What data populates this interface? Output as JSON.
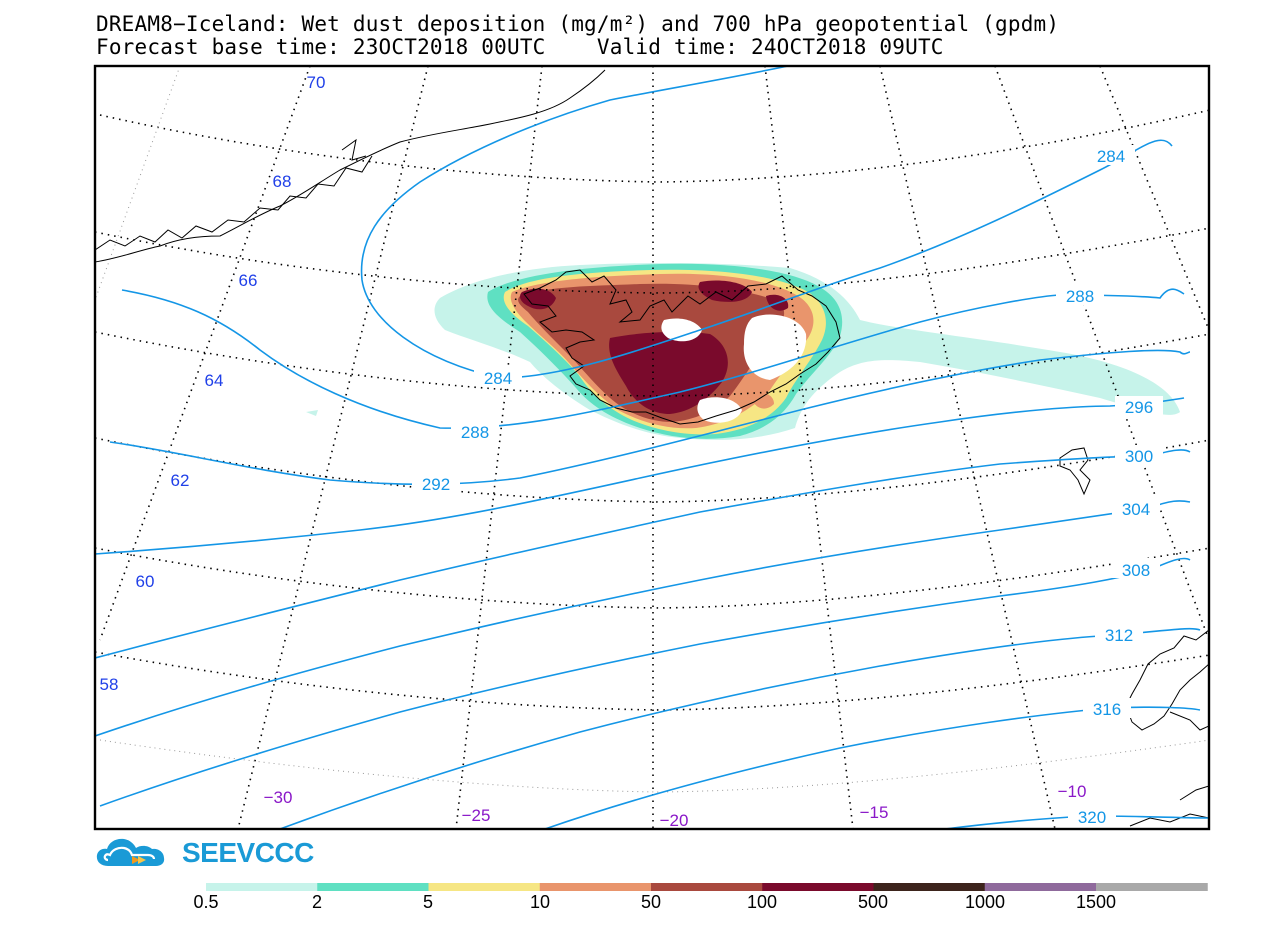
{
  "header": {
    "line1": "DREAM8−Iceland: Wet dust deposition (mg/m²) and 700 hPa geopotential (gpdm)",
    "line2": "Forecast base time: 23OCT2018 00UTC    Valid time: 24OCT2018 09UTC"
  },
  "logo": {
    "name": "SEEVCCC",
    "icon": "cloud-arrow-icon",
    "color": "#1a9ad6"
  },
  "latitude_labels": [
    "70",
    "68",
    "66",
    "64",
    "62",
    "60",
    "58"
  ],
  "longitude_labels": [
    "−30",
    "−25",
    "−20",
    "−15",
    "−10"
  ],
  "contour_labels": [
    "284",
    "284",
    "288",
    "288",
    "292",
    "296",
    "300",
    "304",
    "308",
    "312",
    "316",
    "320"
  ],
  "legend": {
    "ticks": [
      "0.5",
      "2",
      "5",
      "10",
      "50",
      "100",
      "500",
      "1000",
      "1500"
    ],
    "colors": [
      "#c6f3ea",
      "#5fe0c2",
      "#f6e684",
      "#e9956c",
      "#a9493e",
      "#7a0a2c",
      "#3d241c",
      "#8f6a9c",
      "#a9a9a9"
    ]
  },
  "colors": {
    "contour": "#1496e6",
    "lat_label": "#2040e8",
    "lon_label": "#8a18c8",
    "frame": "#000000"
  }
}
